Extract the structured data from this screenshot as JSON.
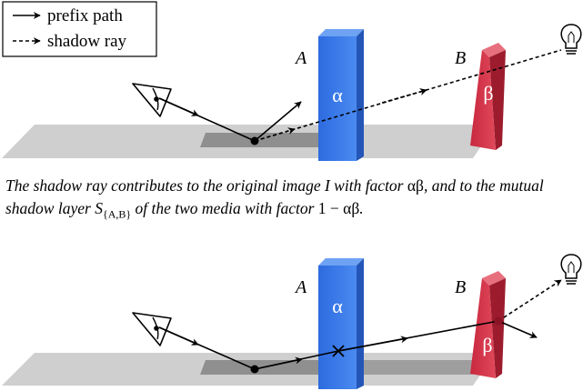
{
  "legend": {
    "prefix_label": "prefix path",
    "shadow_label": "shadow ray"
  },
  "labels": {
    "medium_a": "A",
    "medium_b": "B",
    "alpha": "α",
    "beta": "β"
  },
  "caption": {
    "p1": "The shadow ray contributes to the original image ",
    "image_symbol": "I",
    "p2": " with factor ",
    "factor_ab": "αβ",
    "p3": ", and to the mutual shadow layer ",
    "layer_symbol": "S",
    "layer_sub": "{A,B}",
    "p4": " of the two media with factor ",
    "factor_one_minus": "1 − αβ",
    "p5": "."
  },
  "colors": {
    "medium_a": "#3a78e0",
    "medium_b": "#d42e45",
    "floor": "#cfcfcf",
    "floor_shadow": "#8f8f8f"
  },
  "icons": [
    "eye-icon",
    "light-bulb-icon",
    "cross-marker-icon"
  ]
}
